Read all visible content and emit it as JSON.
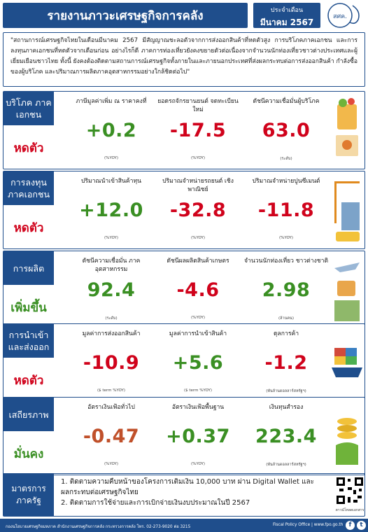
{
  "header": {
    "title": "รายงานภาวะเศรษฐกิจการคลัง",
    "date_label": "ประจำเดือน",
    "date_value": "มีนาคม 2567",
    "logo_text": "สศค."
  },
  "summary": "\"สถานการณ์เศรษฐกิจไทยในเดือนมีนาคม 2567 มีสัญญาณชะลอตัวจากการส่งออกสินค้าที่หดตัวสูง การบริโภคภาคเอกชน และการลงทุนภาคเอกชนที่หดตัวจากเดือนก่อน อย่างไรก็ดี ภาคการท่องเที่ยวยังคงขยายตัวต่อเนื่องจากจำนวนนักท่องเที่ยวชาวต่างประเทศและผู้เยี่ยมเยือนชาวไทย ทั้งนี้ ยังคงต้องติดตามสถานการณ์เศรษฐกิจทั้งภายในและภายนอกประเทศที่ส่งผลกระทบต่อการส่งออกสินค้า กำลังซื้อของผู้บริโภค และปริมาณการผลิตภาคอุตสาหกรรมอย่างใกล้ชิดต่อไป\"",
  "sections": [
    {
      "category": "บริโภค ภาคเอกชน",
      "status": "หดตัว",
      "status_type": "down",
      "metrics": [
        {
          "label": "ภาษีมูลค่าเพิ่ม ณ ราคาคงที่",
          "value": "+0.2",
          "sign": "pos",
          "unit": "(%YOY)"
        },
        {
          "label": "ยอดรถจักรยานยนต์ จดทะเบียนใหม่",
          "value": "-17.5",
          "sign": "neg",
          "unit": "(%YOY)"
        },
        {
          "label": "ดัชนีความเชื่อมั่นผู้บริโภค",
          "value": "63.0",
          "sign": "neg",
          "unit": "(ระดับ)"
        }
      ]
    },
    {
      "category": "การลงทุน ภาคเอกชน",
      "status": "หดตัว",
      "status_type": "down",
      "metrics": [
        {
          "label": "ปริมาณนำเข้าสินค้าทุน",
          "value": "+12.0",
          "sign": "pos",
          "unit": "(%YOY)"
        },
        {
          "label": "ปริมาณจำหน่ายรถยนต์ เชิงพาณิชย์",
          "value": "-32.8",
          "sign": "neg",
          "unit": "(%YOY)"
        },
        {
          "label": "ปริมาณจำหน่ายปูนซีเมนต์",
          "value": "-11.8",
          "sign": "neg",
          "unit": "(%YOY)"
        }
      ]
    },
    {
      "category": "การผลิต",
      "status": "เพิ่มขึ้น",
      "status_type": "up",
      "metrics": [
        {
          "label": "ดัชนีความเชื่อมั่น ภาคอุตสาหกรรม",
          "value": "92.4",
          "sign": "pos",
          "unit": "(ระดับ)"
        },
        {
          "label": "ดัชนีผลผลิตสินค้าเกษตร",
          "value": "-4.6",
          "sign": "neg",
          "unit": "(%YOY)"
        },
        {
          "label": "จำนวนนักท่องเที่ยว ชาวต่างชาติ",
          "value": "2.98",
          "sign": "pos",
          "unit": "(ล้านคน)"
        }
      ]
    },
    {
      "category": "การนำเข้า และส่งออก",
      "status": "หดตัว",
      "status_type": "down",
      "metrics": [
        {
          "label": "มูลค่าการส่งออกสินค้า",
          "value": "-10.9",
          "sign": "neg",
          "unit": "($ term %YOY)"
        },
        {
          "label": "มูลค่าการนำเข้าสินค้า",
          "value": "+5.6",
          "sign": "pos",
          "unit": "($ term %YOY)"
        },
        {
          "label": "ดุลการค้า",
          "value": "-1.2",
          "sign": "neg",
          "unit": "(พันล้านดอลลาร์สหรัฐฯ)"
        }
      ]
    },
    {
      "category": "เสถียรภาพ",
      "status": "มั่นคง",
      "status_type": "up",
      "metrics": [
        {
          "label": "อัตราเงินเฟ้อทั่วไป",
          "value": "-0.47",
          "sign": "neg",
          "unit": "(%YOY)"
        },
        {
          "label": "อัตราเงินเฟ้อพื้นฐาน",
          "value": "+0.37",
          "sign": "pos",
          "unit": "(%YOY)"
        },
        {
          "label": "เงินทุนสำรอง",
          "value": "223.4",
          "sign": "pos",
          "unit": "(พันล้านดอลลาร์สหรัฐฯ)"
        }
      ]
    }
  ],
  "measures": {
    "category": "มาตรการ ภาครัฐ",
    "items": [
      "1. ติดตามความคืบหน้าของโครงการเติมเงิน 10,000 บาท ผ่าน Digital Wallet และผลกระทบต่อเศรษฐกิจไทย",
      "2. ติดตามการใช้จ่ายและการเบิกจ่ายเงินงบประมาณในปี 2567"
    ],
    "qr_caption": "ดาวน์โหลดเอกสาร"
  },
  "footer": {
    "left": "กองนโยบายเศรษฐกิจมหภาค สำนักงานเศรษฐกิจการคลัง กระทรวงการคลัง โทร. 02-273-9020 ต่อ 3215",
    "right": "Fiscal Policy Office | www.fpo.go.th"
  },
  "colors": {
    "brand_blue": "#1f4e8c",
    "negative_red": "#d0021b",
    "positive_green": "#3a8f23"
  }
}
